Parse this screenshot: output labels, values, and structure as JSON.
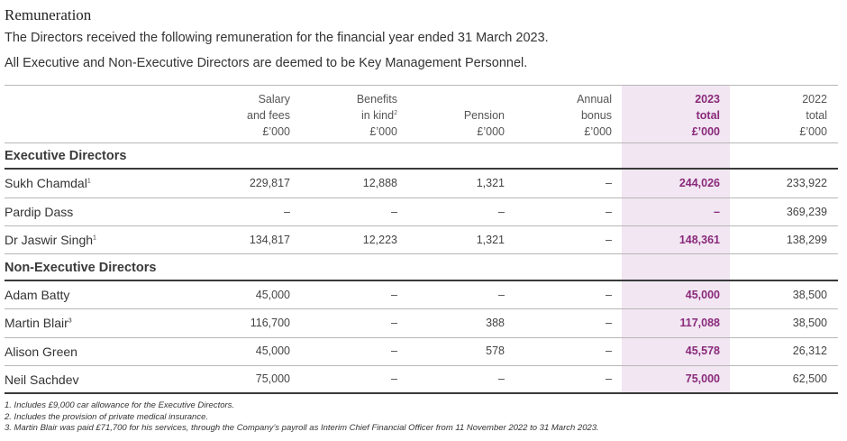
{
  "title": "Remuneration",
  "intro": [
    "The Directors received the following remuneration for the financial year ended 31 March 2023.",
    "All Executive and Non-Executive Directors are deemed to be Key Management Personnel."
  ],
  "columns": [
    {
      "lines": [
        "Salary",
        "and fees",
        "£’000"
      ]
    },
    {
      "lines": [
        "Benefits",
        "in kind",
        "£’000"
      ],
      "sup": "2"
    },
    {
      "lines": [
        "Pension",
        "£’000"
      ]
    },
    {
      "lines": [
        "Annual",
        "bonus",
        "£’000"
      ]
    },
    {
      "lines": [
        "2023",
        "total",
        "£’000"
      ]
    },
    {
      "lines": [
        "2022",
        "total",
        "£’000"
      ]
    }
  ],
  "sections": [
    {
      "title": "Executive Directors",
      "rows": [
        {
          "name": "Sukh Chamdal",
          "sup": "1",
          "values": [
            "229,817",
            "12,888",
            "1,321",
            "–",
            "244,026",
            "233,922"
          ]
        },
        {
          "name": "Pardip Dass",
          "sup": "",
          "values": [
            "–",
            "–",
            "–",
            "–",
            "–",
            "369,239"
          ]
        },
        {
          "name": "Dr Jaswir Singh",
          "sup": "1",
          "values": [
            "134,817",
            "12,223",
            "1,321",
            "–",
            "148,361",
            "138,299"
          ]
        }
      ]
    },
    {
      "title": "Non-Executive Directors",
      "rows": [
        {
          "name": "Adam Batty",
          "sup": "",
          "values": [
            "45,000",
            "–",
            "–",
            "–",
            "45,000",
            "38,500"
          ]
        },
        {
          "name": "Martin Blair",
          "sup": "3",
          "values": [
            "116,700",
            "–",
            "388",
            "–",
            "117,088",
            "38,500"
          ]
        },
        {
          "name": "Alison Green",
          "sup": "",
          "values": [
            "45,000",
            "–",
            "578",
            "–",
            "45,578",
            "26,312"
          ]
        },
        {
          "name": "Neil Sachdev",
          "sup": "",
          "values": [
            "75,000",
            "–",
            "–",
            "–",
            "75,000",
            "62,500"
          ]
        }
      ]
    }
  ],
  "notes": [
    "1. Includes £9,000 car allowance for the Executive Directors.",
    "2. Includes the provision of private medical insurance.",
    "3. Martin Blair was paid £71,700 for his services, through the Company’s payroll as Interim Chief Financial Officer from 11 November 2022 to 31 March 2023."
  ],
  "colors": {
    "accent": "#8a2a7b",
    "highlight": "#f1e6f2"
  }
}
